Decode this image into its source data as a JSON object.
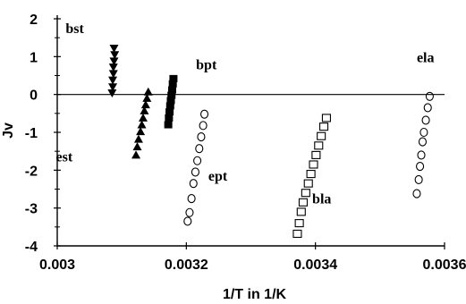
{
  "chart_data": {
    "type": "scatter",
    "xlabel": "1/T in 1/K",
    "ylabel": "Jv",
    "xlim": [
      0.003,
      0.0036
    ],
    "ylim": [
      -4,
      2
    ],
    "x_ticks": [
      "0.003",
      "0.0032",
      "0.0034",
      "0.0036"
    ],
    "y_ticks": [
      "2",
      "1",
      "0",
      "-1",
      "-2",
      "-3",
      "-4"
    ],
    "zero_line": true,
    "grid": false,
    "legend": "none",
    "annotations": [
      {
        "text": "bst",
        "x": 0.003013,
        "y": 1.62
      },
      {
        "text": "bpt",
        "x": 0.003215,
        "y": 0.67
      },
      {
        "text": "ela",
        "x": 0.003557,
        "y": 0.85
      },
      {
        "text": "est",
        "x": 0.002998,
        "y": -1.77
      },
      {
        "text": "ept",
        "x": 0.003234,
        "y": -2.27
      },
      {
        "text": "bla",
        "x": 0.003395,
        "y": -2.88
      }
    ],
    "series": [
      {
        "marker": "triangle-down-filled",
        "color": "#000000",
        "points": [
          [
            0.003088,
            1.22
          ],
          [
            0.003089,
            1.05
          ],
          [
            0.003088,
            0.88
          ],
          [
            0.003087,
            0.72
          ],
          [
            0.003087,
            0.55
          ],
          [
            0.003086,
            0.38
          ],
          [
            0.003086,
            0.2
          ],
          [
            0.003085,
            0.04
          ]
        ]
      },
      {
        "marker": "triangle-up-filled",
        "color": "#000000",
        "points": [
          [
            0.003141,
            0.07
          ],
          [
            0.003139,
            -0.1
          ],
          [
            0.003137,
            -0.27
          ],
          [
            0.003135,
            -0.43
          ],
          [
            0.003133,
            -0.62
          ],
          [
            0.003131,
            -0.8
          ],
          [
            0.003129,
            -0.98
          ],
          [
            0.003126,
            -1.18
          ],
          [
            0.003124,
            -1.38
          ],
          [
            0.003122,
            -1.6
          ]
        ]
      },
      {
        "marker": "square-filled",
        "color": "#000000",
        "points": [
          [
            0.00318,
            0.42
          ],
          [
            0.003179,
            0.28
          ],
          [
            0.003178,
            0.12
          ],
          [
            0.003177,
            -0.02
          ],
          [
            0.003176,
            -0.16
          ],
          [
            0.003175,
            -0.3
          ],
          [
            0.003174,
            -0.46
          ],
          [
            0.003173,
            -0.62
          ],
          [
            0.003172,
            -0.8
          ]
        ]
      },
      {
        "marker": "circle-open",
        "color": "#000000",
        "points": [
          [
            0.003228,
            -0.52
          ],
          [
            0.003226,
            -0.82
          ],
          [
            0.003223,
            -1.12
          ],
          [
            0.00322,
            -1.43
          ],
          [
            0.003217,
            -1.75
          ],
          [
            0.003214,
            -2.05
          ],
          [
            0.003211,
            -2.35
          ],
          [
            0.003208,
            -2.75
          ],
          [
            0.003205,
            -3.12
          ],
          [
            0.003202,
            -3.35
          ]
        ]
      },
      {
        "marker": "square-open",
        "color": "#000000",
        "points": [
          [
            0.003417,
            -0.62
          ],
          [
            0.003413,
            -0.85
          ],
          [
            0.003409,
            -1.1
          ],
          [
            0.003405,
            -1.35
          ],
          [
            0.003401,
            -1.6
          ],
          [
            0.003397,
            -1.85
          ],
          [
            0.003393,
            -2.1
          ],
          [
            0.003389,
            -2.35
          ],
          [
            0.003385,
            -2.6
          ],
          [
            0.003381,
            -2.85
          ],
          [
            0.003378,
            -3.1
          ],
          [
            0.003375,
            -3.4
          ],
          [
            0.003372,
            -3.68
          ]
        ]
      },
      {
        "marker": "circle-open",
        "color": "#000000",
        "points": [
          [
            0.003577,
            -0.05
          ],
          [
            0.003574,
            -0.35
          ],
          [
            0.003571,
            -0.68
          ],
          [
            0.003568,
            -1.0
          ],
          [
            0.003566,
            -1.25
          ],
          [
            0.003564,
            -1.6
          ],
          [
            0.003562,
            -1.9
          ],
          [
            0.00356,
            -2.25
          ],
          [
            0.003557,
            -2.62
          ]
        ]
      }
    ]
  }
}
